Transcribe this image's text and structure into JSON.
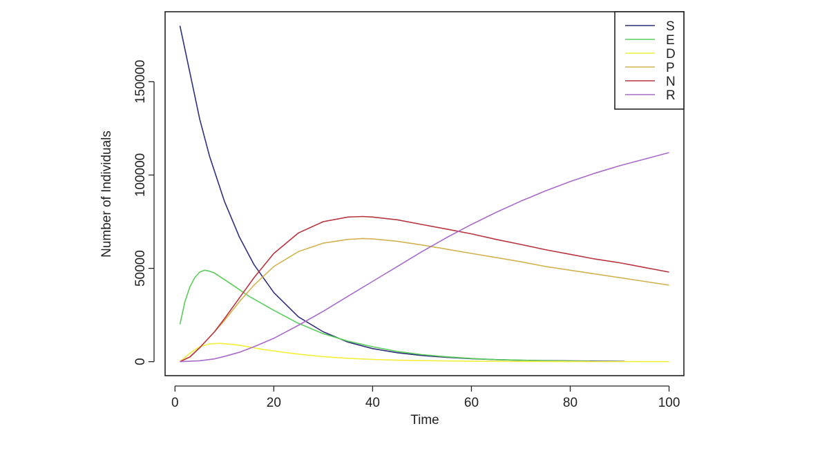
{
  "chart_data": {
    "type": "line",
    "title": "",
    "xlabel": "Time",
    "ylabel": "Number of Individuals",
    "xlim": [
      -2,
      103
    ],
    "ylim": [
      -7500,
      187500
    ],
    "xticks": [
      0,
      20,
      40,
      60,
      80,
      100
    ],
    "xtick_labels": [
      "0",
      "20",
      "40",
      "60",
      "80",
      "100"
    ],
    "yticks": [
      0,
      50000,
      100000,
      150000
    ],
    "ytick_labels": [
      "0",
      "50000",
      "100000",
      "150000"
    ],
    "grid": false,
    "legend_position": "top-right",
    "series": [
      {
        "name": "S",
        "color": "#2e2e7a",
        "x": [
          1,
          3,
          5,
          7,
          10,
          13,
          16,
          20,
          25,
          30,
          35,
          40,
          45,
          50,
          55,
          60,
          65,
          70,
          75,
          80,
          85,
          91
        ],
        "y": [
          180000,
          155000,
          130000,
          110000,
          86000,
          67000,
          52000,
          37000,
          24000,
          16000,
          10500,
          7000,
          4800,
          3300,
          2300,
          1600,
          1100,
          750,
          550,
          400,
          300,
          200
        ]
      },
      {
        "name": "E",
        "color": "#5acc5a",
        "x": [
          1,
          2,
          3,
          4,
          5,
          6,
          7,
          8,
          10,
          12,
          15,
          20,
          25,
          30,
          35,
          40,
          45,
          50,
          55,
          60,
          65,
          70,
          75,
          80,
          84
        ],
        "y": [
          20000,
          32000,
          40000,
          45000,
          48000,
          49000,
          48500,
          47500,
          44000,
          40500,
          35000,
          27500,
          20500,
          15000,
          11000,
          8000,
          5500,
          3800,
          2600,
          1700,
          1100,
          800,
          500,
          300,
          200
        ]
      },
      {
        "name": "D",
        "color": "#f2ee3a",
        "x": [
          1,
          3,
          5,
          7,
          9,
          11,
          13,
          15,
          18,
          22,
          26,
          30,
          35,
          40,
          45,
          50,
          55,
          60,
          70,
          80,
          90,
          100
        ],
        "y": [
          0,
          4500,
          8000,
          9500,
          9800,
          9400,
          8800,
          7900,
          6500,
          5000,
          3700,
          2700,
          1800,
          1200,
          800,
          550,
          370,
          250,
          120,
          60,
          30,
          15
        ]
      },
      {
        "name": "P",
        "color": "#d2b250",
        "x": [
          1,
          3,
          5,
          8,
          10,
          13,
          16,
          20,
          25,
          30,
          35,
          38,
          40,
          45,
          50,
          55,
          60,
          65,
          70,
          75,
          80,
          85,
          90,
          95,
          100
        ],
        "y": [
          0,
          2500,
          7500,
          16000,
          22000,
          32000,
          41000,
          51000,
          59000,
          63500,
          65500,
          66000,
          65800,
          64500,
          62500,
          60300,
          58000,
          55800,
          53500,
          51000,
          49000,
          47000,
          45000,
          43000,
          41000
        ]
      },
      {
        "name": "N",
        "color": "#b8333d",
        "x": [
          1,
          3,
          5,
          8,
          10,
          13,
          16,
          20,
          25,
          30,
          35,
          38,
          40,
          45,
          50,
          55,
          60,
          65,
          70,
          75,
          80,
          85,
          90,
          95,
          100
        ],
        "y": [
          0,
          2500,
          7500,
          16000,
          23000,
          34000,
          45000,
          58000,
          69000,
          75000,
          77500,
          77800,
          77500,
          76000,
          73500,
          71000,
          68500,
          65500,
          62800,
          60000,
          57500,
          55000,
          53000,
          50500,
          48000
        ]
      },
      {
        "name": "R",
        "color": "#a86acb",
        "x": [
          1,
          5,
          8,
          10,
          13,
          16,
          20,
          25,
          30,
          35,
          40,
          45,
          50,
          55,
          60,
          65,
          70,
          75,
          80,
          85,
          90,
          95,
          100
        ],
        "y": [
          0,
          500,
          1500,
          2800,
          5000,
          8000,
          12500,
          19500,
          27000,
          35000,
          43000,
          51000,
          59000,
          66500,
          73500,
          80000,
          86000,
          91500,
          96500,
          101000,
          105000,
          108500,
          112000
        ]
      }
    ]
  }
}
